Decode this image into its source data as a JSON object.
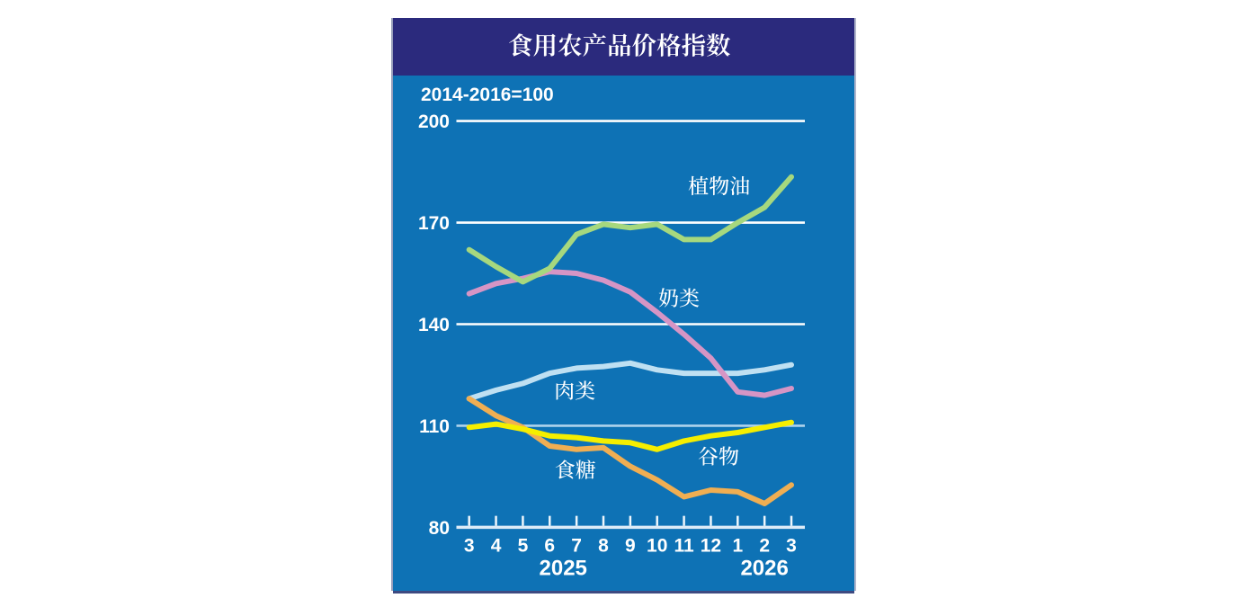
{
  "page": {
    "background": "#ffffff"
  },
  "panel": {
    "background": "#0e72b5",
    "title_bar_color": "#2b2a7d",
    "border_color": "#1c2a6b"
  },
  "header": {
    "title": "食用农产品价格指数",
    "title_color": "#ffffff"
  },
  "chart_data": {
    "type": "line",
    "title": "食用农产品价格指数",
    "subtitle": "2014-2016=100",
    "x_tick_labels": [
      "3",
      "4",
      "5",
      "6",
      "7",
      "8",
      "9",
      "10",
      "11",
      "12",
      "1",
      "2",
      "3"
    ],
    "x_year_labels": [
      {
        "label": "2025",
        "month_index": 3.5
      },
      {
        "label": "2026",
        "month_index": 11
      }
    ],
    "y_ticks": [
      200,
      170,
      140,
      110,
      80
    ],
    "ylim": [
      80,
      200
    ],
    "grid": "horizontal-white-lines",
    "legend_position": "labels-next-to-lines",
    "text_color": "#ffffff",
    "series": [
      {
        "key": "meat",
        "name": "肉类",
        "color": "#bfe0f2",
        "values": [
          118,
          120.5,
          122.5,
          125.5,
          127,
          127.5,
          128.5,
          126.5,
          125.5,
          125.5,
          125.5,
          126.5,
          128
        ]
      },
      {
        "key": "dairy",
        "name": "奶类",
        "color": "#d695c5",
        "values": [
          149,
          152,
          153.5,
          155.5,
          155,
          153,
          149.5,
          143.5,
          137,
          130,
          120,
          119,
          121
        ]
      },
      {
        "key": "vegetable_oil",
        "name": "植物油",
        "color": "#a6d87e",
        "values": [
          162,
          157,
          152.5,
          156.5,
          166.5,
          169.5,
          168.5,
          169.5,
          165,
          165,
          170,
          174.5,
          183.5
        ]
      },
      {
        "key": "sugar",
        "name": "食糖",
        "color": "#f0ae52",
        "values": [
          118,
          113,
          109.5,
          104,
          103,
          103.5,
          98,
          94,
          89,
          91,
          90.5,
          87,
          92.5
        ]
      },
      {
        "key": "grains",
        "name": "谷物",
        "color": "#f5ee00",
        "values": [
          109.5,
          110.5,
          109,
          107,
          106.5,
          105.5,
          105,
          103,
          105.5,
          107,
          108,
          109.5,
          111
        ]
      }
    ]
  }
}
